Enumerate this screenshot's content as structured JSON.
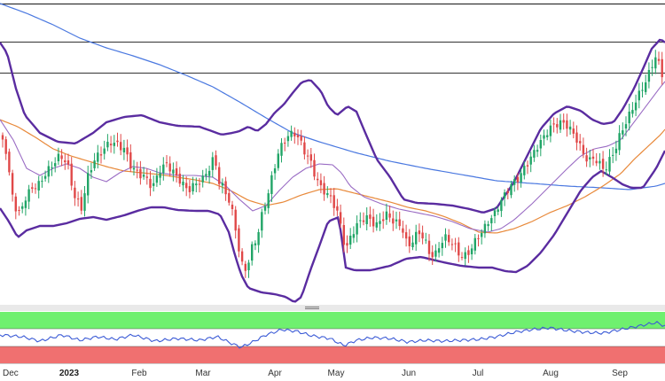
{
  "chart_data": [
    {
      "type": "candlestick",
      "panel": "price",
      "x_tick_labels": [
        "Dec",
        "2023",
        "Feb",
        "Mar",
        "Apr",
        "May",
        "Jun",
        "Jul",
        "Aug",
        "Sep"
      ],
      "bold_tick_labels": [
        "2023"
      ],
      "y_axis_labels": [],
      "horizontal_levels": [
        "upper",
        "upper-middle",
        "middle"
      ],
      "grid": false,
      "overlays": [
        "bollinger-upper",
        "bollinger-lower",
        "moving-average-fast",
        "moving-average-mid",
        "moving-average-slow"
      ],
      "colors": {
        "up_candle": "#21a567",
        "down_candle": "#e04848",
        "bollinger": "#5a2ca0",
        "ma_fast": "#9a6cc4",
        "ma_mid": "#e8893a",
        "ma_slow": "#4a78e0",
        "levels": "#333333"
      }
    },
    {
      "type": "line",
      "panel": "oscillator",
      "series": [
        {
          "name": "",
          "values": []
        }
      ],
      "zones": [
        "overbought",
        "neutral",
        "oversold"
      ],
      "colors": {
        "line": "#3b5bd6",
        "overbought_zone": "#6ff06f",
        "oversold_zone": "#f07070",
        "neutral_zone": "#ffffff"
      }
    }
  ]
}
